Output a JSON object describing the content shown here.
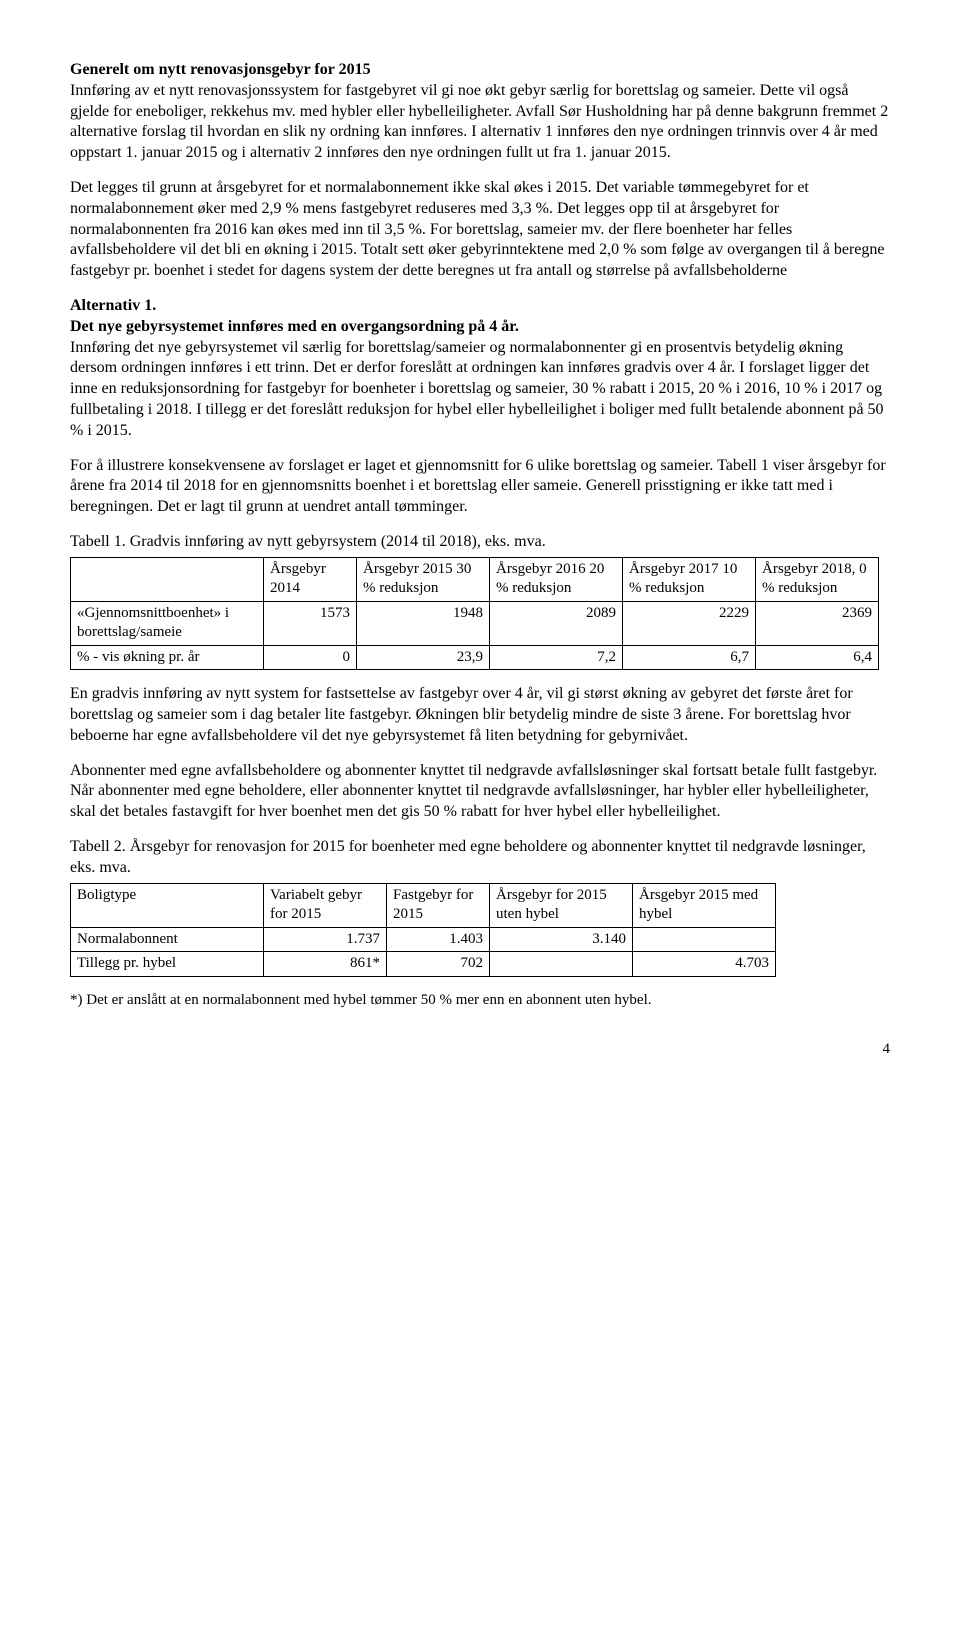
{
  "heading1": "Generelt om nytt renovasjonsgebyr for 2015",
  "para1": "Innføring av et nytt renovasjonssystem for fastgebyret vil gi noe økt gebyr særlig for borettslag og sameier. Dette vil også gjelde for eneboliger, rekkehus mv. med hybler eller hybelleiligheter. Avfall Sør Husholdning har på denne bakgrunn fremmet 2 alternative forslag til hvordan en slik ny ordning kan innføres. I alternativ 1 innføres den nye ordningen trinnvis over 4 år med oppstart 1. januar 2015 og i alternativ 2 innføres den nye ordningen fullt ut fra 1. januar 2015.",
  "para2": "Det legges til grunn at årsgebyret for et normalabonnement ikke skal økes i 2015. Det variable tømmegebyret for et normalabonnement øker med 2,9 % mens fastgebyret reduseres med 3,3 %. Det legges opp til at årsgebyret for normalabonnenten fra 2016 kan økes med inn til 3,5 %. For borettslag, sameier mv. der flere boenheter har felles avfallsbeholdere vil det bli en økning i 2015. Totalt sett øker gebyrinntektene med 2,0 % som følge av overgangen til å beregne fastgebyr pr. boenhet i stedet for dagens system der dette beregnes ut fra antall og størrelse på avfallsbeholderne",
  "alt1_title": "Alternativ 1.",
  "alt1_sub": "Det nye gebyrsystemet innføres med en overgangsordning på 4 år.",
  "para3": "Innføring det nye gebyrsystemet vil særlig for borettslag/sameier og normalabonnenter gi en prosentvis betydelig økning dersom ordningen innføres i ett trinn. Det er derfor foreslått at ordningen kan innføres gradvis over 4 år. I forslaget ligger det inne en reduksjonsordning for fastgebyr for boenheter i borettslag og sameier, 30 % rabatt i 2015, 20 % i 2016, 10 % i 2017 og fullbetaling i 2018. I tillegg er det foreslått reduksjon for hybel eller hybelleilighet i boliger med fullt betalende abonnent på 50 % i 2015.",
  "para4": "For å illustrere konsekvensene av forslaget er laget et gjennomsnitt for 6 ulike borettslag og sameier. Tabell 1 viser årsgebyr for årene fra 2014 til 2018 for en gjennomsnitts boenhet i et borettslag eller sameie. Generell prisstigning er ikke tatt med i beregningen. Det er lagt til grunn at uendret antall tømminger.",
  "table1_caption": "Tabell 1. Gradvis innføring av nytt gebyrsystem (2014 til 2018), eks. mva.",
  "table1": {
    "headers": [
      "",
      "Årsgebyr 2014",
      "Årsgebyr 2015 30 % reduksjon",
      "Årsgebyr 2016 20 % reduksjon",
      "Årsgebyr 2017 10 % reduksjon",
      "Årsgebyr 2018, 0 % reduksjon"
    ],
    "rows": [
      {
        "label": "«Gjennomsnittboenhet» i borettslag/sameie",
        "v": [
          "1573",
          "1948",
          "2089",
          "2229",
          "2369"
        ]
      },
      {
        "label": "% - vis økning pr. år",
        "v": [
          "0",
          "23,9",
          "7,2",
          "6,7",
          "6,4"
        ]
      }
    ],
    "col_widths": [
      "180px",
      "80px",
      "120px",
      "120px",
      "120px",
      "110px"
    ]
  },
  "para5": "En gradvis innføring av nytt system for fastsettelse av fastgebyr over 4 år, vil gi størst økning av gebyret det første året for borettslag og sameier som i dag betaler lite fastgebyr. Økningen blir betydelig mindre de siste 3 årene. For borettslag hvor beboerne har egne avfallsbeholdere vil det nye gebyrsystemet få liten betydning for gebyrnivået.",
  "para6": "Abonnenter med egne avfallsbeholdere og abonnenter knyttet til nedgravde avfallsløsninger skal fortsatt betale fullt fastgebyr. Når abonnenter med egne beholdere, eller abonnenter knyttet til nedgravde avfallsløsninger, har hybler eller hybelleiligheter, skal det betales fastavgift for hver boenhet men det gis 50 % rabatt for hver hybel eller hybelleilighet.",
  "table2_caption": "Tabell 2. Årsgebyr for renovasjon for 2015 for boenheter med egne beholdere og abonnenter knyttet til nedgravde løsninger, eks. mva.",
  "table2": {
    "headers": [
      "Boligtype",
      "Variabelt gebyr for 2015",
      "Fastgebyr for 2015",
      "Årsgebyr for 2015 uten hybel",
      "Årsgebyr 2015 med hybel"
    ],
    "rows": [
      {
        "cells": [
          "Normalabonnent",
          "1.737",
          "1.403",
          "3.140",
          ""
        ]
      },
      {
        "cells": [
          "Tillegg pr. hybel",
          "861*",
          "702",
          "",
          "4.703"
        ]
      }
    ],
    "col_widths": [
      "180px",
      "110px",
      "90px",
      "130px",
      "130px"
    ]
  },
  "footnote": "*) Det er anslått at en normalabonnent med hybel tømmer 50 % mer enn en abonnent uten hybel.",
  "page_number": "4"
}
